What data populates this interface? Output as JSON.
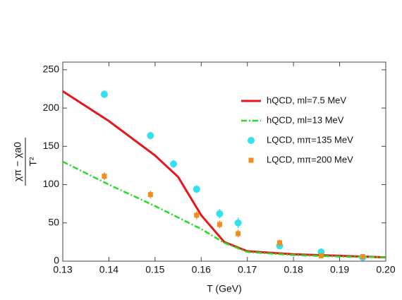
{
  "chart_data": {
    "type": "line",
    "x_label": "T (GeV)",
    "y_label_numerator": "χπ − χa0",
    "y_label_denominator": "T²",
    "xlim": [
      0.13,
      0.2
    ],
    "xticks": [
      0.13,
      0.14,
      0.15,
      0.16,
      0.17,
      0.18,
      0.19,
      {
        "value": 0.2,
        "label": "0.20"
      }
    ],
    "ylim": [
      0,
      260
    ],
    "yticks": [
      0,
      50,
      100,
      150,
      200,
      250
    ],
    "legend": "upper right",
    "series": [
      {
        "name": "hQCD, ml=7.5 MeV",
        "color": "#e8161b",
        "kind": "line",
        "x": [
          0.13,
          0.14,
          0.15,
          0.155,
          0.16,
          0.165,
          0.17,
          0.18,
          0.19,
          0.2
        ],
        "values": [
          222,
          183,
          138,
          110,
          60,
          25,
          13,
          9,
          7,
          5
        ]
      },
      {
        "name": "hQCD, ml=13 MeV",
        "color": "#22dd22",
        "kind": "dashdot",
        "x": [
          0.13,
          0.14,
          0.15,
          0.16,
          0.165,
          0.17,
          0.18,
          0.19,
          0.2
        ],
        "values": [
          130,
          100,
          72,
          42,
          24,
          12,
          8,
          6,
          5
        ]
      },
      {
        "name": "LQCD, mπ=135 MeV",
        "color": "#33e0ee",
        "kind": "circle",
        "x": [
          0.139,
          0.149,
          0.154,
          0.159,
          0.164,
          0.168,
          0.177,
          0.186,
          0.195
        ],
        "values": [
          218,
          164,
          127,
          94,
          62,
          50,
          20,
          12,
          5
        ],
        "errors": [
          5,
          5,
          5,
          5,
          6,
          7,
          4,
          4,
          3
        ]
      },
      {
        "name": "LQCD, mπ=200 MeV",
        "color": "#f28c1c",
        "kind": "square",
        "x": [
          0.139,
          0.149,
          0.159,
          0.164,
          0.168,
          0.177,
          0.186,
          0.195
        ],
        "values": [
          111,
          87,
          60,
          48,
          36,
          24,
          7,
          6
        ],
        "errors": [
          5,
          5,
          5,
          5,
          5,
          4,
          3,
          3
        ]
      }
    ]
  }
}
